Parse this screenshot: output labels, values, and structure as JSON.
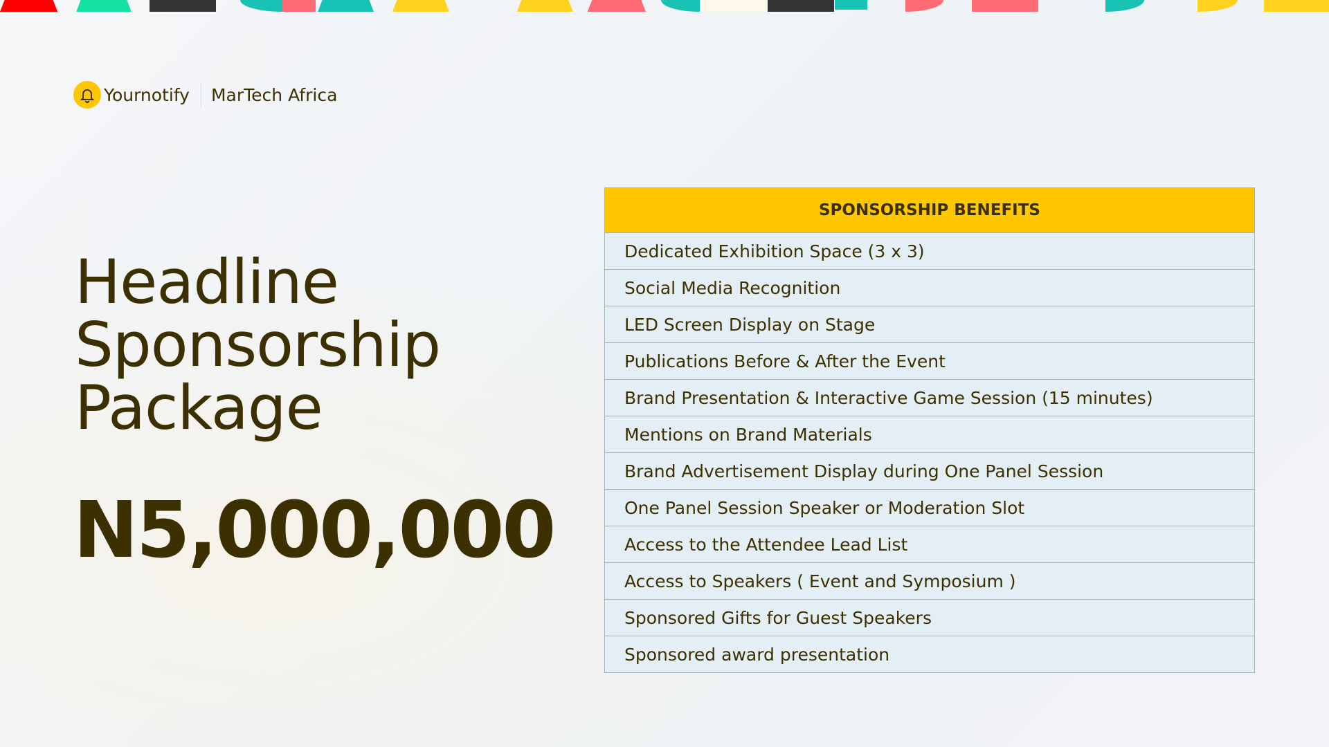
{
  "brand": {
    "name": "Yournotify",
    "event": "MarTech Africa",
    "icon": "bell-icon",
    "accent": "#FFC700"
  },
  "title_lines": [
    "Headline",
    "Sponsorship",
    "Package"
  ],
  "price": "N5,000,000",
  "table": {
    "header": "SPONSORSHIP BENEFITS",
    "rows": [
      "Dedicated Exhibition Space (3 x 3)",
      "Social Media Recognition",
      "LED Screen Display on Stage",
      "Publications Before & After the Event",
      "Brand Presentation & Interactive Game Session (15 minutes)",
      "Mentions on Brand Materials",
      "Brand Advertisement Display during One Panel Session",
      "One Panel Session Speaker or Moderation Slot",
      "Access to the Attendee Lead List",
      "Access to Speakers ( Event and Symposium )",
      "Sponsored Gifts for Guest Speakers",
      "Sponsored award presentation"
    ]
  }
}
